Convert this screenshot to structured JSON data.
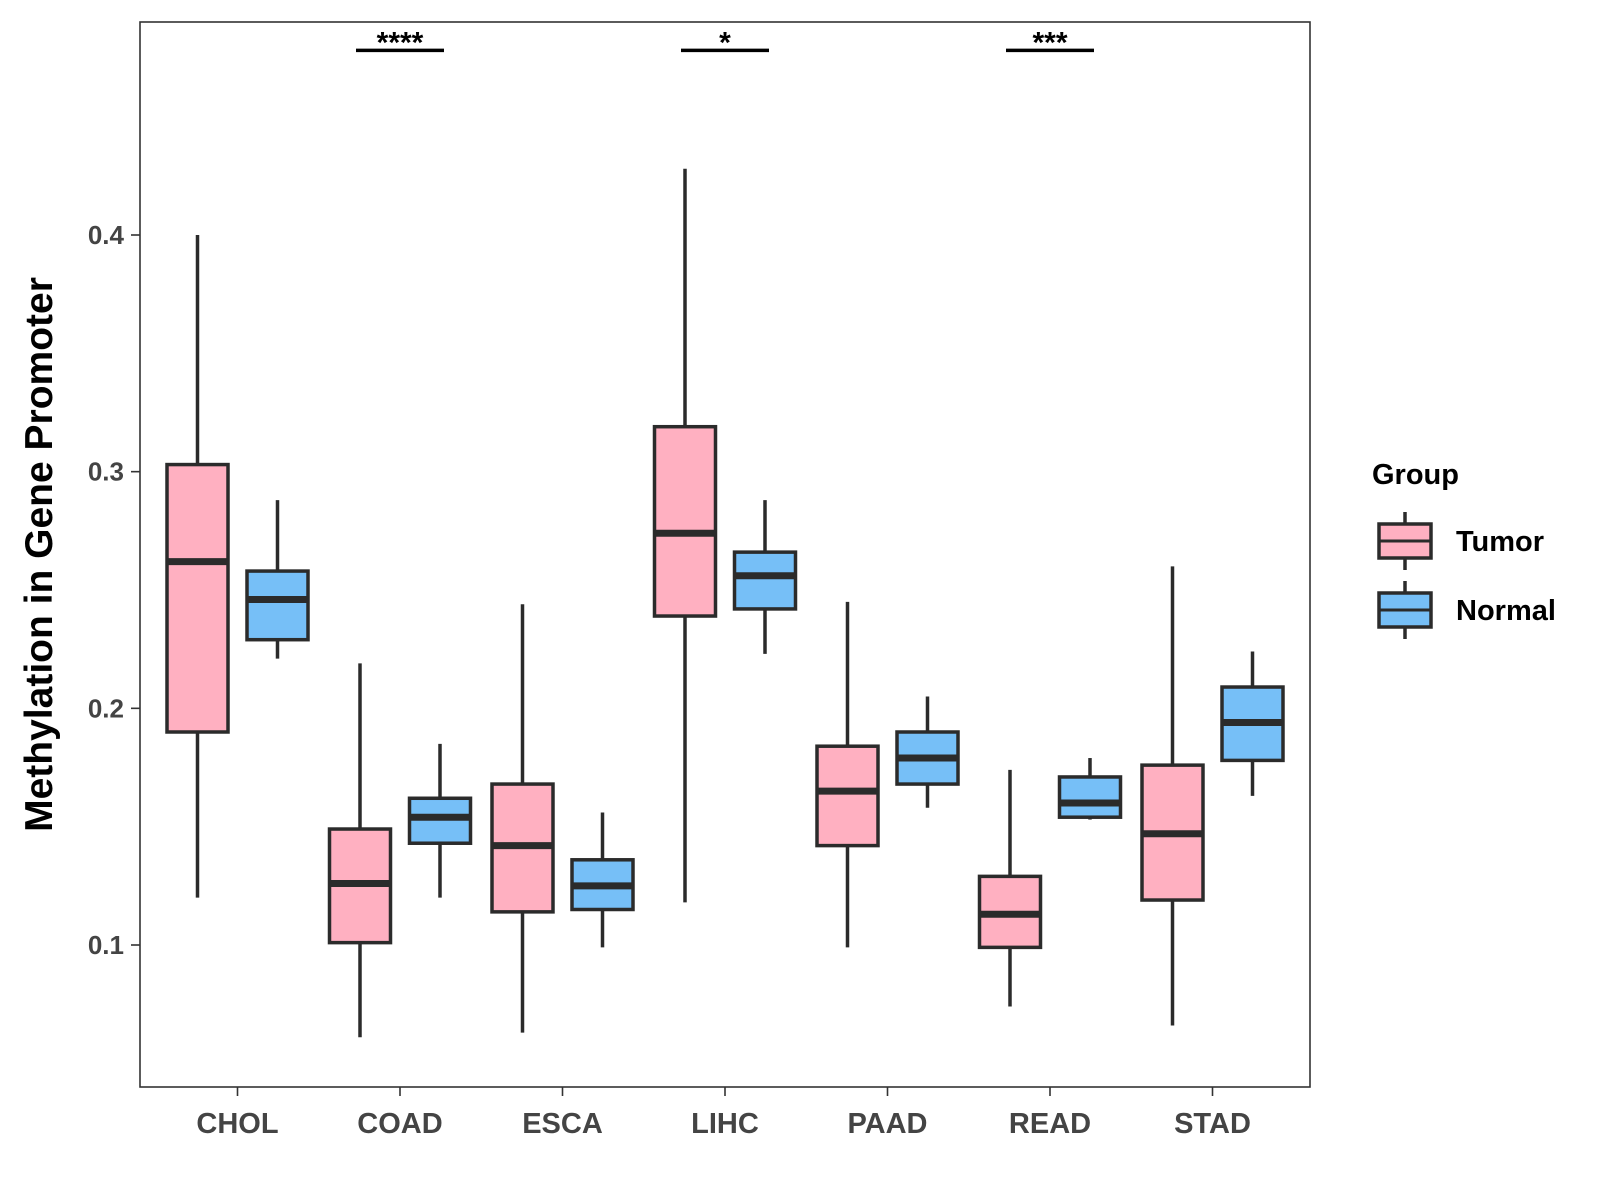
{
  "chart_data": {
    "type": "boxplot",
    "title": "",
    "xlabel": "",
    "ylabel": "Methylation in Gene Promoter",
    "ylim": [
      0.04,
      0.49
    ],
    "yticks": [
      0.1,
      0.2,
      0.3,
      0.4
    ],
    "ytick_labels": [
      "0.1",
      "0.2",
      "0.3",
      "0.4"
    ],
    "categories": [
      "CHOL",
      "COAD",
      "ESCA",
      "LIHC",
      "PAAD",
      "READ",
      "STAD"
    ],
    "legend": {
      "title": "Group",
      "position": "right",
      "entries": [
        {
          "name": "Tumor",
          "color": "#FFB0C1"
        },
        {
          "name": "Normal",
          "color": "#76BFF7"
        }
      ]
    },
    "series": [
      {
        "name": "Tumor",
        "color": "#FFB0C1",
        "boxes": [
          {
            "category": "CHOL",
            "min": 0.12,
            "q1": 0.19,
            "median": 0.262,
            "q3": 0.303,
            "max": 0.4
          },
          {
            "category": "COAD",
            "min": 0.061,
            "q1": 0.101,
            "median": 0.126,
            "q3": 0.149,
            "max": 0.219
          },
          {
            "category": "ESCA",
            "min": 0.063,
            "q1": 0.114,
            "median": 0.142,
            "q3": 0.168,
            "max": 0.244
          },
          {
            "category": "LIHC",
            "min": 0.118,
            "q1": 0.239,
            "median": 0.274,
            "q3": 0.319,
            "max": 0.428
          },
          {
            "category": "PAAD",
            "min": 0.099,
            "q1": 0.142,
            "median": 0.165,
            "q3": 0.184,
            "max": 0.245
          },
          {
            "category": "READ",
            "min": 0.074,
            "q1": 0.099,
            "median": 0.113,
            "q3": 0.129,
            "max": 0.174
          },
          {
            "category": "STAD",
            "min": 0.066,
            "q1": 0.119,
            "median": 0.147,
            "q3": 0.176,
            "max": 0.26
          }
        ]
      },
      {
        "name": "Normal",
        "color": "#76BFF7",
        "boxes": [
          {
            "category": "CHOL",
            "min": 0.221,
            "q1": 0.229,
            "median": 0.246,
            "q3": 0.258,
            "max": 0.288
          },
          {
            "category": "COAD",
            "min": 0.12,
            "q1": 0.143,
            "median": 0.154,
            "q3": 0.162,
            "max": 0.185
          },
          {
            "category": "ESCA",
            "min": 0.099,
            "q1": 0.115,
            "median": 0.125,
            "q3": 0.136,
            "max": 0.156
          },
          {
            "category": "LIHC",
            "min": 0.223,
            "q1": 0.242,
            "median": 0.256,
            "q3": 0.266,
            "max": 0.288
          },
          {
            "category": "PAAD",
            "min": 0.158,
            "q1": 0.168,
            "median": 0.179,
            "q3": 0.19,
            "max": 0.205
          },
          {
            "category": "READ",
            "min": 0.153,
            "q1": 0.154,
            "median": 0.16,
            "q3": 0.171,
            "max": 0.179
          },
          {
            "category": "STAD",
            "min": 0.163,
            "q1": 0.178,
            "median": 0.194,
            "q3": 0.209,
            "max": 0.224
          }
        ]
      }
    ],
    "significance": [
      {
        "category": "COAD",
        "label": "****",
        "y": 0.478
      },
      {
        "category": "LIHC",
        "label": "*",
        "y": 0.478
      },
      {
        "category": "READ",
        "label": "***",
        "y": 0.478
      }
    ],
    "grid": false
  }
}
